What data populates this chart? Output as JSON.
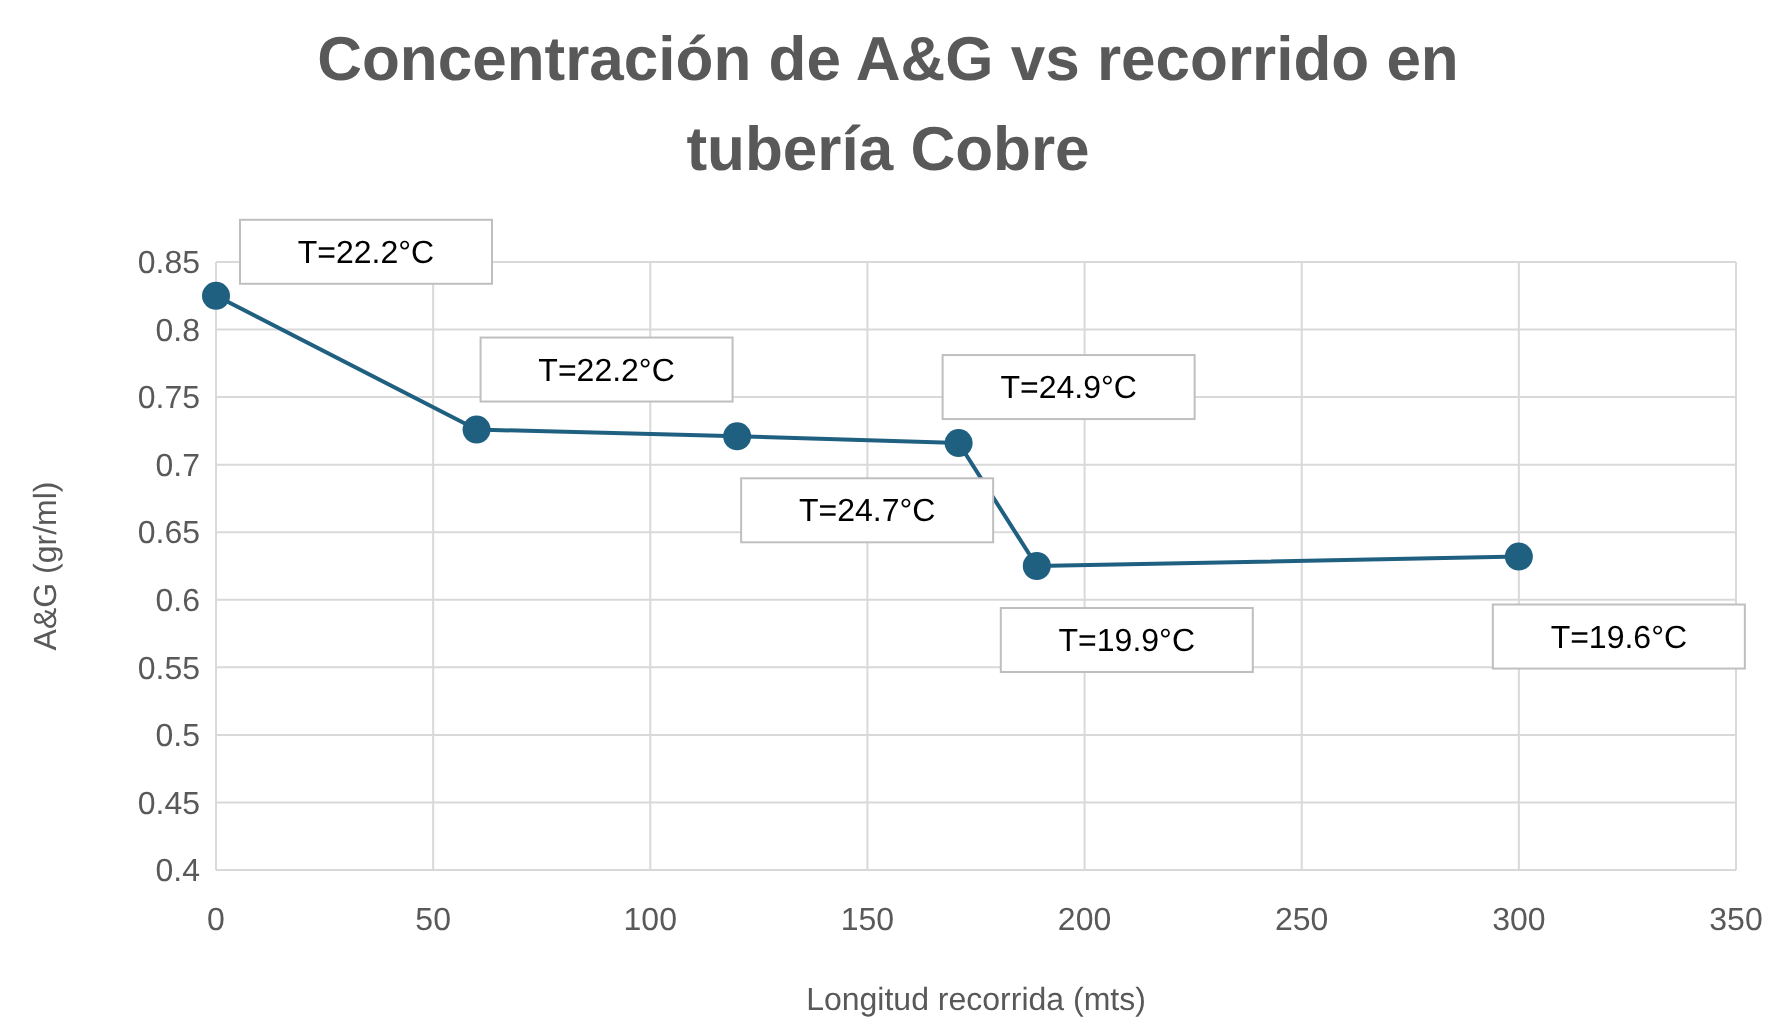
{
  "chart_data": {
    "type": "line",
    "title": "Concentración de A&G vs recorrido en tubería Cobre",
    "xlabel": "Longitud recorrida (mts)",
    "ylabel": "A&G (gr/ml)",
    "x": [
      0,
      60,
      120,
      171,
      189,
      300
    ],
    "series": [
      {
        "color": "#1f5f80",
        "values": [
          0.825,
          0.726,
          0.721,
          0.716,
          0.625,
          0.632
        ]
      }
    ],
    "xlim": [
      0,
      350
    ],
    "xticks": [
      0,
      50,
      100,
      150,
      200,
      250,
      300,
      350
    ],
    "ylim": [
      0.4,
      0.85
    ],
    "yticks": [
      {
        "value": 0.4,
        "label": "0.4"
      },
      {
        "value": 0.45,
        "label": "0.45"
      },
      {
        "value": 0.5,
        "label": "0.5"
      },
      {
        "value": 0.55,
        "label": "0.55"
      },
      {
        "value": 0.6,
        "label": "0.6"
      },
      {
        "value": 0.65,
        "label": "0.65"
      },
      {
        "value": 0.7,
        "label": "0.7"
      },
      {
        "value": 0.75,
        "label": "0.75"
      },
      {
        "value": 0.8,
        "label": "0.8"
      },
      {
        "value": 0.85,
        "label": "0.85"
      }
    ],
    "grid": true,
    "marker": "circle",
    "line_style": "solid",
    "annotations": [
      {
        "text": "T=22.2°C",
        "x": 0,
        "y": 0.825
      },
      {
        "text": "T=22.2°C",
        "x": 60,
        "y": 0.726
      },
      {
        "text": "T=24.7°C",
        "x": 120,
        "y": 0.721
      },
      {
        "text": "T=24.9°C",
        "x": 171,
        "y": 0.716
      },
      {
        "text": "T=19.9°C",
        "x": 189,
        "y": 0.625
      },
      {
        "text": "T=19.6°C",
        "x": 300,
        "y": 0.632
      }
    ]
  }
}
